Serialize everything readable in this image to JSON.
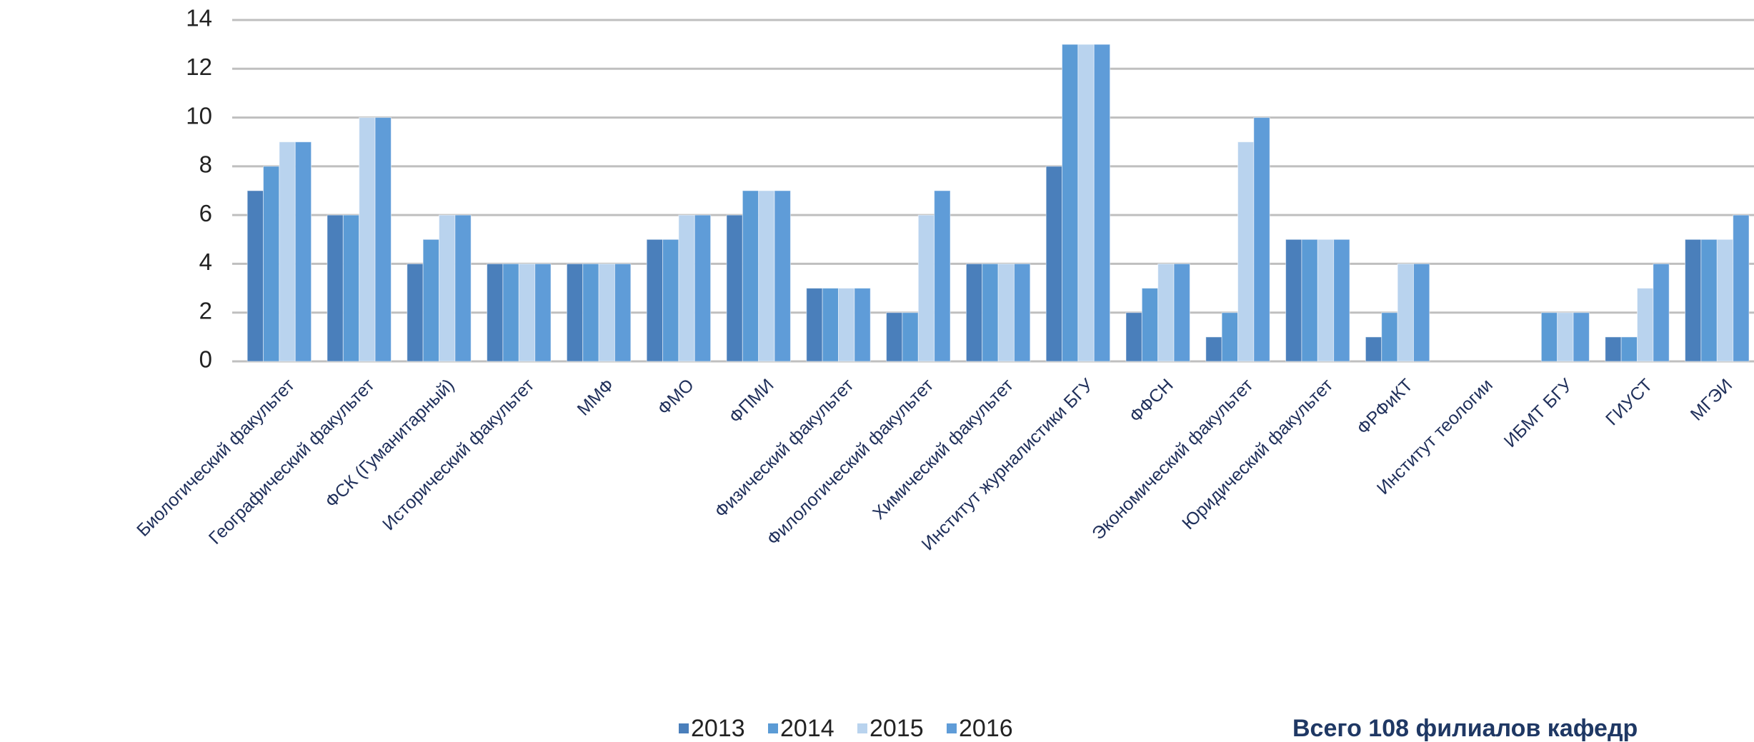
{
  "chart_data": {
    "type": "bar",
    "categories": [
      "Биологический факультет",
      "Географический факультет",
      "ФСК (Гуманитарный)",
      "Исторический факультет",
      "ММФ",
      "ФМО",
      "ФПМИ",
      "Физический факультет",
      "Филологический факультет",
      "Химический факультет",
      "Институт журналистики БГУ",
      "ФФСН",
      "Экономический факультет",
      "Юридический факультет",
      "ФРФиКТ",
      "Институт теологии",
      "ИБМТ БГУ",
      "ГИУСТ",
      "МГЭИ"
    ],
    "series": [
      {
        "name": "2013",
        "color": "#4a7fbb",
        "values": [
          7,
          6,
          4,
          4,
          4,
          5,
          6,
          3,
          2,
          4,
          8,
          2,
          1,
          5,
          1,
          0,
          0,
          1,
          5
        ]
      },
      {
        "name": "2014",
        "color": "#5b9bd5",
        "values": [
          8,
          6,
          5,
          4,
          4,
          5,
          7,
          3,
          2,
          4,
          13,
          3,
          2,
          5,
          2,
          0,
          2,
          1,
          5
        ]
      },
      {
        "name": "2015",
        "color": "#b9d3ee",
        "values": [
          9,
          10,
          6,
          4,
          4,
          6,
          7,
          3,
          6,
          4,
          13,
          4,
          9,
          5,
          4,
          0,
          2,
          3,
          5
        ]
      },
      {
        "name": "2016",
        "color": "#5f9cd8",
        "values": [
          9,
          10,
          6,
          4,
          4,
          6,
          7,
          3,
          7,
          4,
          13,
          4,
          10,
          5,
          4,
          0,
          2,
          4,
          6
        ]
      }
    ],
    "ylim": [
      0,
      14
    ],
    "yticks": [
      0,
      2,
      4,
      6,
      8,
      10,
      12,
      14
    ],
    "grid": true,
    "legend": "bottom",
    "annotation": "Всего 108 филиалов кафедр"
  }
}
